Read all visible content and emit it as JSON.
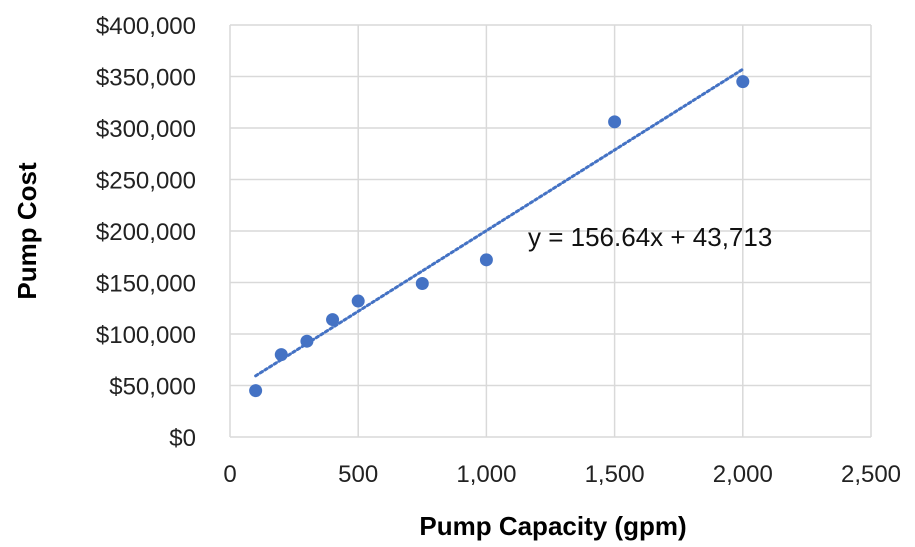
{
  "chart_data": {
    "type": "scatter",
    "xlabel": "Pump Capacity (gpm)",
    "ylabel": "Pump Cost",
    "xlim": [
      0,
      2500
    ],
    "ylim": [
      0,
      400000
    ],
    "x_ticks": [
      0,
      500,
      1000,
      1500,
      2000,
      2500
    ],
    "x_tick_labels": [
      "0",
      "500",
      "1,000",
      "1,500",
      "2,000",
      "2,500"
    ],
    "y_ticks": [
      0,
      50000,
      100000,
      150000,
      200000,
      250000,
      300000,
      350000,
      400000
    ],
    "y_tick_labels": [
      "$0",
      "$50,000",
      "$100,000",
      "$150,000",
      "$200,000",
      "$250,000",
      "$300,000",
      "$350,000",
      "$400,000"
    ],
    "grid": true,
    "marker_color": "#4472C4",
    "trendline_color": "#4472C4",
    "points": [
      {
        "x": 100,
        "y": 45000
      },
      {
        "x": 200,
        "y": 80000
      },
      {
        "x": 300,
        "y": 93000
      },
      {
        "x": 400,
        "y": 114000
      },
      {
        "x": 500,
        "y": 132000
      },
      {
        "x": 750,
        "y": 149000
      },
      {
        "x": 1000,
        "y": 172000
      },
      {
        "x": 1500,
        "y": 306000
      },
      {
        "x": 2000,
        "y": 345000
      }
    ],
    "trendline": {
      "type": "linear",
      "slope": 156.64,
      "intercept": 43713,
      "x_range": [
        100,
        2000
      ],
      "label": "y = 156.64x + 43,713"
    }
  }
}
